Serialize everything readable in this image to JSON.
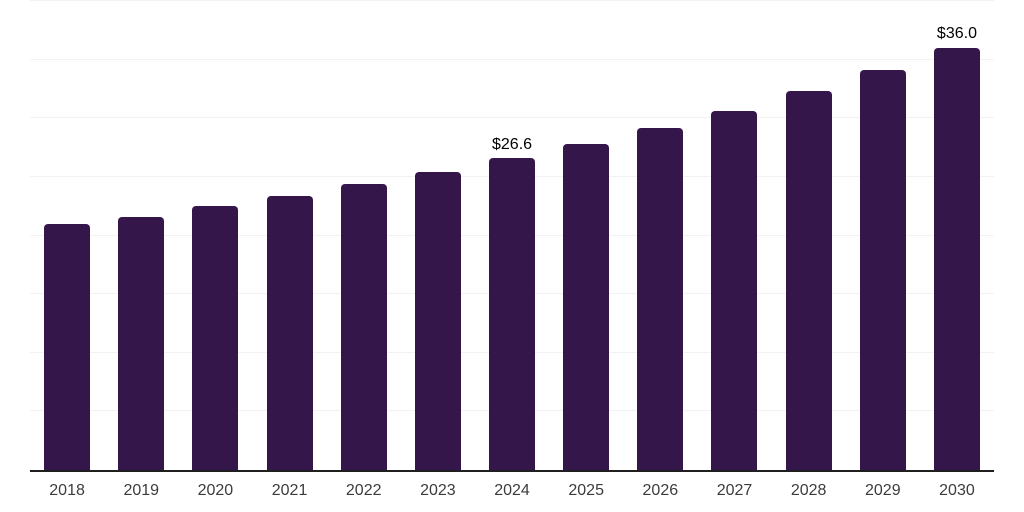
{
  "chart_data": {
    "type": "bar",
    "categories": [
      "2018",
      "2019",
      "2020",
      "2021",
      "2022",
      "2023",
      "2024",
      "2025",
      "2026",
      "2027",
      "2028",
      "2029",
      "2030"
    ],
    "values": [
      21.0,
      21.6,
      22.5,
      23.4,
      24.4,
      25.4,
      26.6,
      27.8,
      29.2,
      30.6,
      32.3,
      34.1,
      36.0
    ],
    "data_labels": [
      "",
      "",
      "",
      "",
      "",
      "",
      "$26.6",
      "",
      "",
      "",
      "",
      "",
      "$36.0"
    ],
    "title": "",
    "xlabel": "",
    "ylabel": "",
    "ylim": [
      0,
      40
    ],
    "grid_step": 5,
    "grid": true,
    "legend": false,
    "y_axis_labels_visible": false,
    "bar_color": "#35164a",
    "grid_color": "#f2f2f2",
    "axis_color": "#1f1f1f",
    "tick_label_color": "#3c3c3c",
    "data_label_color": "#000000",
    "background_color": "#ffffff"
  }
}
